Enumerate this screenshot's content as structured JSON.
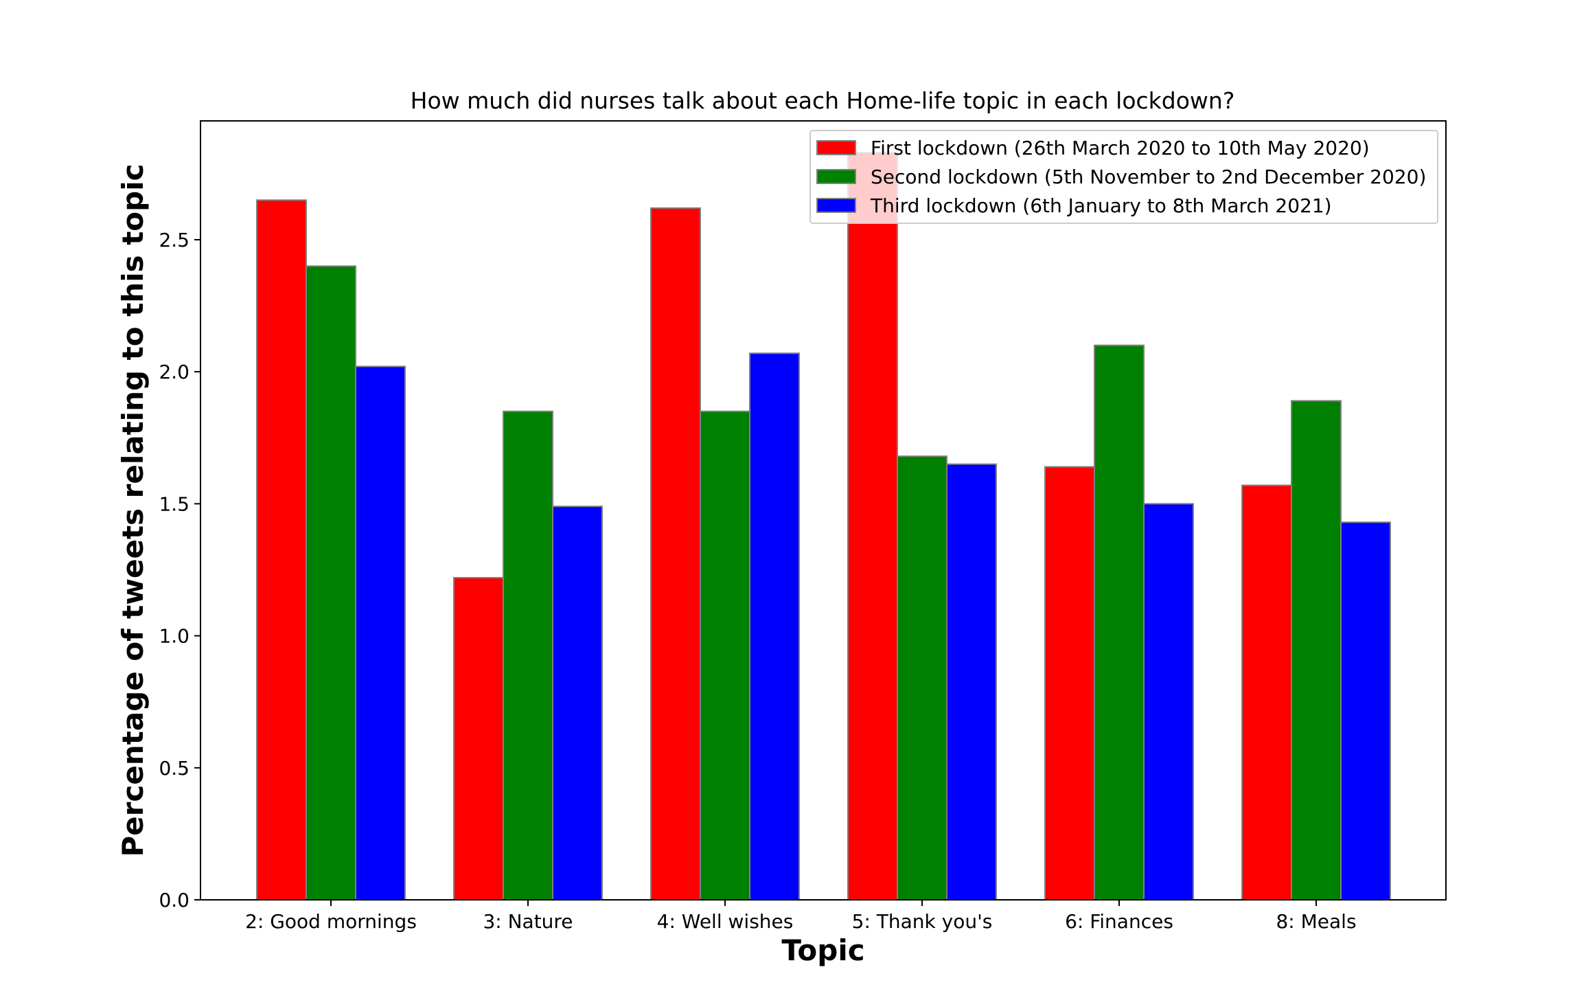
{
  "chart_data": {
    "type": "bar",
    "title": "How much did nurses talk about each Home-life topic in each lockdown?",
    "xlabel": "Topic",
    "ylabel": "Percentage of tweets relating to this topic",
    "categories": [
      "2: Good mornings",
      "3: Nature",
      "4: Well wishes",
      "5: Thank you's",
      "6: Finances",
      "8: Meals"
    ],
    "series": [
      {
        "name": "First lockdown (26th March 2020 to 10th May 2020)",
        "color": "#ff0000",
        "values": [
          2.65,
          1.22,
          2.62,
          2.83,
          1.64,
          1.57
        ]
      },
      {
        "name": "Second lockdown (5th November to 2nd December 2020)",
        "color": "#008000",
        "values": [
          2.4,
          1.85,
          1.85,
          1.68,
          2.1,
          1.89
        ]
      },
      {
        "name": "Third lockdown (6th January to 8th March 2021)",
        "color": "#0000ff",
        "values": [
          2.02,
          1.49,
          2.07,
          1.65,
          1.5,
          1.43
        ]
      }
    ],
    "ylim": [
      0,
      2.95
    ],
    "yticks": [
      "0.0",
      "0.5",
      "1.0",
      "1.5",
      "2.0",
      "2.5"
    ],
    "bar_edge_color": "#808080",
    "legend_position": "upper-right",
    "grid": false
  }
}
